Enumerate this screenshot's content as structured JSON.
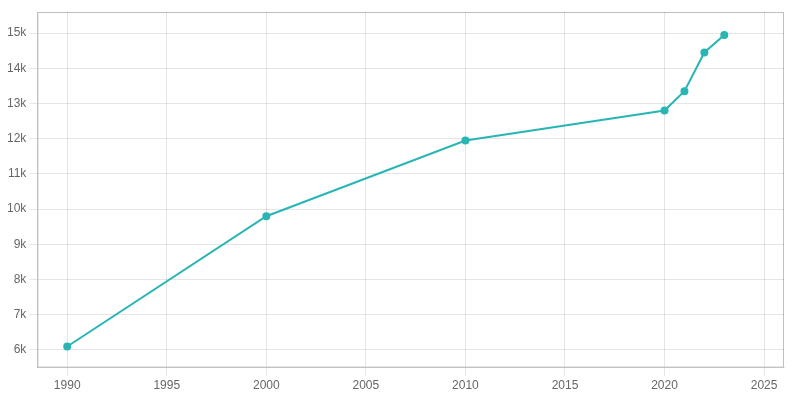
{
  "chart_data": {
    "type": "line",
    "x": [
      1990,
      2000,
      2010,
      2020,
      2021,
      2022,
      2023
    ],
    "values": [
      6100,
      9800,
      11950,
      12800,
      13350,
      14450,
      14950
    ],
    "color": "#2ab5b5",
    "marker": "circle",
    "xlim": [
      1988.5,
      2026
    ],
    "ylim": [
      5500,
      15600
    ],
    "xticks": [
      1990,
      1995,
      2000,
      2005,
      2010,
      2015,
      2020,
      2025
    ],
    "yticks": [
      {
        "value": 6000,
        "label": "6k"
      },
      {
        "value": 7000,
        "label": "7k"
      },
      {
        "value": 8000,
        "label": "8k"
      },
      {
        "value": 9000,
        "label": "9k"
      },
      {
        "value": 10000,
        "label": "10k"
      },
      {
        "value": 11000,
        "label": "11k"
      },
      {
        "value": 12000,
        "label": "12k"
      },
      {
        "value": 13000,
        "label": "13k"
      },
      {
        "value": 14000,
        "label": "14k"
      },
      {
        "value": 15000,
        "label": "15k"
      }
    ],
    "grid": true
  }
}
